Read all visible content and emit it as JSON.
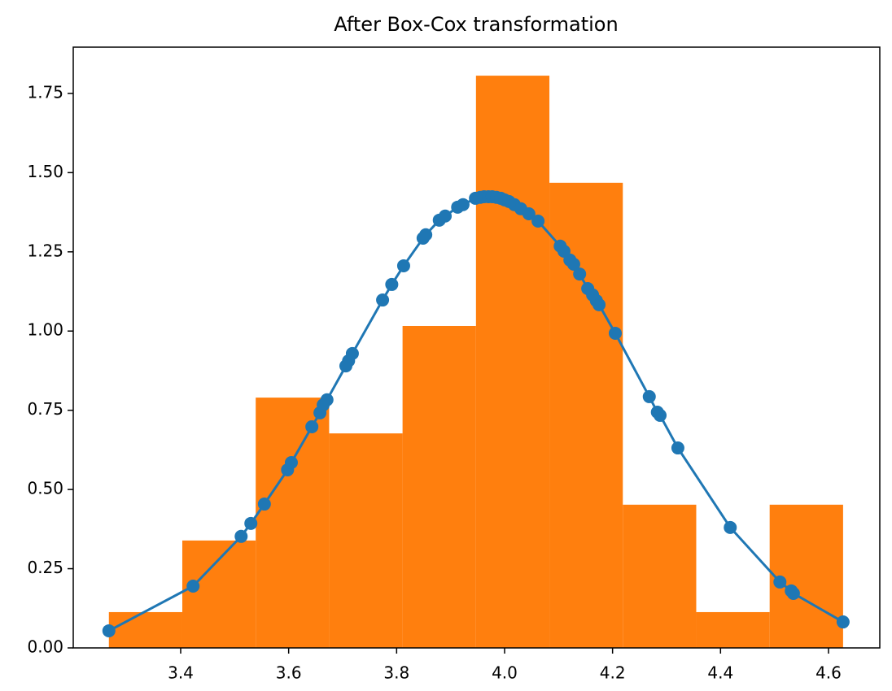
{
  "chart_data": {
    "type": "histogram",
    "title": "After Box-Cox transformation",
    "bins": [
      3.267,
      3.403,
      3.539,
      3.675,
      3.811,
      3.947,
      4.083,
      4.219,
      4.355,
      4.491,
      4.627
    ],
    "counts": [
      0.113,
      0.339,
      0.79,
      0.677,
      1.016,
      1.806,
      1.468,
      0.452,
      0.113,
      0.452
    ],
    "color": "#ff7f0e",
    "line": {
      "color": "#1f77b4",
      "x": [
        3.267,
        3.423,
        3.512,
        3.53,
        3.555,
        3.598,
        3.605,
        3.643,
        3.658,
        3.664,
        3.671,
        3.706,
        3.711,
        3.718,
        3.774,
        3.791,
        3.813,
        3.849,
        3.854,
        3.879,
        3.89,
        3.913,
        3.923,
        3.946,
        3.955,
        3.962,
        3.97,
        3.977,
        3.985,
        3.993,
        4.0,
        4.008,
        4.018,
        4.03,
        4.045,
        4.062,
        4.103,
        4.11,
        4.121,
        4.128,
        4.139,
        4.154,
        4.163,
        4.17,
        4.175,
        4.205,
        4.268,
        4.283,
        4.288,
        4.321,
        4.418,
        4.51,
        4.531,
        4.535,
        4.627
      ],
      "values": [
        0.054,
        0.195,
        0.352,
        0.393,
        0.454,
        0.562,
        0.585,
        0.698,
        0.742,
        0.767,
        0.783,
        0.89,
        0.906,
        0.929,
        1.098,
        1.147,
        1.206,
        1.293,
        1.304,
        1.35,
        1.363,
        1.391,
        1.399,
        1.419,
        1.422,
        1.424,
        1.424,
        1.424,
        1.422,
        1.419,
        1.414,
        1.409,
        1.399,
        1.386,
        1.37,
        1.347,
        1.268,
        1.252,
        1.224,
        1.211,
        1.18,
        1.134,
        1.114,
        1.096,
        1.083,
        0.993,
        0.793,
        0.744,
        0.734,
        0.631,
        0.38,
        0.208,
        0.18,
        0.172,
        0.082
      ]
    },
    "xlim": [
      3.201,
      4.695
    ],
    "ylim": [
      0,
      1.896
    ],
    "xticks": [
      3.4,
      3.6,
      3.8,
      {
        "value": 4,
        "label": "4.0"
      },
      4.2,
      4.4,
      4.6
    ],
    "yticks": [
      {
        "value": 0,
        "label": "0.00"
      },
      {
        "value": 0.25,
        "label": "0.25"
      },
      {
        "value": 0.5,
        "label": "0.50"
      },
      {
        "value": 0.75,
        "label": "0.75"
      },
      {
        "value": 1,
        "label": "1.00"
      },
      {
        "value": 1.25,
        "label": "1.25"
      },
      {
        "value": 1.5,
        "label": "1.50"
      },
      {
        "value": 1.75,
        "label": "1.75"
      }
    ]
  }
}
